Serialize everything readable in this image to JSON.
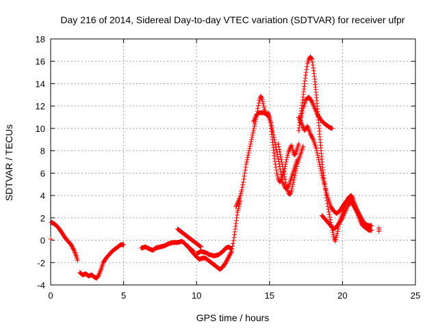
{
  "chart_data": {
    "type": "scatter",
    "title": "Day 216 of 2014, Sidereal Day-to-day VTEC variation (SDTVAR) for receiver ufpr",
    "xlabel": "GPS time / hours",
    "ylabel": "SDTVAR / TECUs",
    "xlim": [
      0,
      25
    ],
    "ylim": [
      -4,
      18
    ],
    "xticks": [
      0,
      5,
      10,
      15,
      20,
      25
    ],
    "yticks": [
      -4,
      -2,
      0,
      2,
      4,
      6,
      8,
      10,
      12,
      14,
      16,
      18
    ],
    "grid": true,
    "marker": "+",
    "series": [
      {
        "name": "SDTVAR",
        "color": "#ff0000",
        "segments": [
          [
            [
              0,
              0.1
            ]
          ],
          [
            [
              0.05,
              1.6
            ],
            [
              0.2,
              1.5
            ],
            [
              0.4,
              1.3
            ],
            [
              0.6,
              1.0
            ],
            [
              0.8,
              0.6
            ],
            [
              1.0,
              0.2
            ],
            [
              1.2,
              -0.1
            ],
            [
              1.4,
              -0.4
            ],
            [
              1.6,
              -0.9
            ],
            [
              1.75,
              -1.4
            ],
            [
              1.85,
              -1.8
            ]
          ],
          [
            [
              2.0,
              -2.9
            ],
            [
              2.2,
              -3.1
            ],
            [
              2.4,
              -3.0
            ],
            [
              2.6,
              -3.2
            ],
            [
              2.8,
              -3.1
            ],
            [
              3.0,
              -3.3
            ],
            [
              3.15,
              -3.4
            ],
            [
              3.3,
              -3.1
            ],
            [
              3.45,
              -2.6
            ],
            [
              3.6,
              -2.0
            ],
            [
              3.8,
              -1.6
            ],
            [
              4.0,
              -1.3
            ],
            [
              4.2,
              -1.0
            ],
            [
              4.4,
              -0.8
            ],
            [
              4.6,
              -0.6
            ],
            [
              4.8,
              -0.4
            ],
            [
              5.0,
              -0.4
            ]
          ],
          [
            [
              6.2,
              -0.7
            ],
            [
              6.5,
              -0.6
            ],
            [
              6.8,
              -0.8
            ],
            [
              7.0,
              -0.9
            ],
            [
              7.2,
              -0.7
            ],
            [
              7.5,
              -0.6
            ],
            [
              7.8,
              -0.5
            ],
            [
              8.1,
              -0.3
            ],
            [
              8.4,
              -0.2
            ],
            [
              8.7,
              -0.2
            ],
            [
              9.0,
              -0.1
            ],
            [
              9.2,
              -0.3
            ],
            [
              9.4,
              -0.6
            ],
            [
              9.6,
              -0.8
            ],
            [
              9.8,
              -1.0
            ]
          ],
          [
            [
              8.7,
              1.0
            ],
            [
              8.9,
              0.8
            ],
            [
              9.1,
              0.6
            ],
            [
              9.3,
              0.4
            ],
            [
              9.5,
              0.2
            ],
            [
              9.7,
              0.0
            ],
            [
              9.9,
              -0.2
            ],
            [
              10.1,
              -0.4
            ],
            [
              10.3,
              -0.6
            ]
          ],
          [
            [
              9.4,
              -0.5
            ],
            [
              9.6,
              -0.9
            ],
            [
              9.8,
              -1.2
            ],
            [
              10.0,
              -1.5
            ],
            [
              10.2,
              -1.7
            ],
            [
              10.4,
              -1.6
            ],
            [
              10.6,
              -1.6
            ],
            [
              10.8,
              -1.8
            ],
            [
              11.0,
              -2.0
            ],
            [
              11.2,
              -2.2
            ],
            [
              11.4,
              -2.4
            ],
            [
              11.6,
              -2.6
            ],
            [
              11.8,
              -2.4
            ],
            [
              12.0,
              -2.0
            ],
            [
              12.2,
              -1.5
            ],
            [
              12.4,
              -1.0
            ],
            [
              12.5,
              -0.3
            ],
            [
              12.6,
              0.5
            ],
            [
              12.7,
              1.5
            ],
            [
              12.8,
              2.5
            ],
            [
              12.9,
              3.0
            ],
            [
              13.0,
              3.5
            ]
          ],
          [
            [
              10.0,
              -1.2
            ],
            [
              10.3,
              -1.0
            ],
            [
              10.6,
              -1.1
            ],
            [
              10.9,
              -1.3
            ],
            [
              11.2,
              -1.4
            ],
            [
              11.5,
              -1.3
            ],
            [
              11.8,
              -1.0
            ],
            [
              12.0,
              -0.7
            ],
            [
              12.2,
              -0.6
            ],
            [
              12.4,
              -0.8
            ]
          ],
          [
            [
              12.7,
              3.0
            ],
            [
              12.9,
              3.6
            ],
            [
              13.0,
              4.0
            ],
            [
              13.1,
              4.5
            ],
            [
              13.2,
              5.2
            ],
            [
              13.3,
              6.0
            ],
            [
              13.4,
              6.8
            ],
            [
              13.5,
              7.4
            ],
            [
              13.6,
              8.0
            ],
            [
              13.7,
              8.6
            ],
            [
              13.8,
              9.2
            ],
            [
              13.9,
              9.8
            ],
            [
              14.0,
              10.4
            ],
            [
              14.1,
              11.0
            ],
            [
              14.2,
              11.8
            ],
            [
              14.3,
              12.5
            ],
            [
              14.4,
              12.9
            ],
            [
              14.5,
              12.6
            ],
            [
              14.6,
              12.0
            ],
            [
              14.7,
              11.5
            ],
            [
              14.8,
              11.2
            ],
            [
              14.9,
              11.4
            ],
            [
              15.0,
              11.0
            ],
            [
              15.1,
              10.2
            ],
            [
              15.2,
              9.0
            ],
            [
              15.3,
              7.8
            ],
            [
              15.4,
              6.8
            ],
            [
              15.5,
              6.0
            ],
            [
              15.6,
              5.5
            ],
            [
              15.7,
              5.2
            ],
            [
              15.8,
              5.4
            ],
            [
              15.9,
              5.8
            ],
            [
              16.0,
              6.2
            ],
            [
              16.1,
              6.8
            ],
            [
              16.2,
              7.4
            ],
            [
              16.3,
              7.9
            ],
            [
              16.4,
              8.2
            ],
            [
              16.5,
              8.5
            ],
            [
              16.6,
              8.0
            ],
            [
              16.7,
              7.6
            ],
            [
              16.8,
              7.8
            ],
            [
              16.9,
              8.2
            ],
            [
              17.0,
              8.6
            ]
          ],
          [
            [
              13.9,
              10.6
            ],
            [
              14.1,
              11.2
            ],
            [
              14.3,
              11.4
            ],
            [
              14.6,
              11.4
            ],
            [
              14.9,
              11.2
            ],
            [
              15.1,
              10.5
            ],
            [
              15.3,
              9.2
            ],
            [
              15.5,
              7.9
            ],
            [
              15.7,
              6.6
            ],
            [
              15.9,
              5.2
            ],
            [
              16.1,
              4.6
            ],
            [
              16.3,
              4.8
            ],
            [
              16.5,
              5.6
            ],
            [
              16.7,
              6.4
            ],
            [
              16.9,
              7.2
            ]
          ],
          [
            [
              15.6,
              8.6
            ],
            [
              15.7,
              7.9
            ],
            [
              15.8,
              7.2
            ],
            [
              15.9,
              6.6
            ],
            [
              16.0,
              5.9
            ],
            [
              16.1,
              5.2
            ],
            [
              16.2,
              4.6
            ],
            [
              16.3,
              4.2
            ],
            [
              16.4,
              4.1
            ],
            [
              16.5,
              4.4
            ],
            [
              16.6,
              5.0
            ],
            [
              16.7,
              5.6
            ],
            [
              16.8,
              6.2
            ],
            [
              16.9,
              6.8
            ],
            [
              17.0,
              7.2
            ],
            [
              17.1,
              7.6
            ],
            [
              17.2,
              8.0
            ],
            [
              17.3,
              8.4
            ]
          ],
          [
            [
              17.0,
              9.8
            ],
            [
              17.1,
              10.8
            ],
            [
              17.2,
              11.8
            ],
            [
              17.3,
              12.8
            ],
            [
              17.4,
              14.0
            ],
            [
              17.5,
              15.0
            ],
            [
              17.6,
              15.8
            ],
            [
              17.7,
              16.2
            ],
            [
              17.8,
              16.4
            ],
            [
              17.9,
              16.2
            ],
            [
              18.0,
              15.4
            ],
            [
              18.1,
              14.4
            ],
            [
              18.2,
              13.0
            ],
            [
              18.3,
              11.5
            ],
            [
              18.4,
              10.0
            ],
            [
              18.5,
              8.5
            ],
            [
              18.6,
              7.0
            ],
            [
              18.7,
              5.8
            ],
            [
              18.8,
              4.8
            ],
            [
              18.9,
              3.8
            ],
            [
              19.0,
              3.0
            ],
            [
              19.1,
              2.3
            ],
            [
              19.2,
              1.6
            ],
            [
              19.3,
              0.9
            ],
            [
              19.4,
              0.3
            ],
            [
              19.5,
              -0.1
            ],
            [
              19.6,
              0.4
            ],
            [
              19.7,
              1.0
            ],
            [
              19.8,
              1.6
            ],
            [
              19.9,
              2.0
            ],
            [
              20.0,
              2.4
            ],
            [
              20.1,
              2.8
            ],
            [
              20.2,
              3.2
            ],
            [
              20.3,
              3.5
            ],
            [
              20.4,
              3.8
            ],
            [
              20.5,
              3.9
            ],
            [
              20.6,
              4.0
            ],
            [
              20.7,
              3.8
            ],
            [
              20.8,
              3.4
            ],
            [
              20.9,
              3.0
            ],
            [
              21.0,
              2.6
            ],
            [
              21.1,
              2.2
            ],
            [
              21.2,
              1.8
            ],
            [
              21.3,
              1.5
            ],
            [
              21.4,
              1.3
            ],
            [
              21.5,
              1.2
            ],
            [
              21.6,
              1.1
            ],
            [
              21.7,
              1.0
            ],
            [
              21.8,
              0.9
            ],
            [
              21.9,
              0.9
            ],
            [
              22.0,
              0.9
            ]
          ],
          [
            [
              17.1,
              10.5
            ],
            [
              17.3,
              11.8
            ],
            [
              17.5,
              12.6
            ],
            [
              17.7,
              12.8
            ],
            [
              17.9,
              12.4
            ],
            [
              18.1,
              11.8
            ],
            [
              18.3,
              11.2
            ],
            [
              18.5,
              10.8
            ],
            [
              18.7,
              10.5
            ],
            [
              18.9,
              10.3
            ],
            [
              19.1,
              10.1
            ],
            [
              19.3,
              10.0
            ]
          ],
          [
            [
              17.0,
              11.0
            ],
            [
              17.2,
              10.4
            ],
            [
              17.4,
              9.8
            ],
            [
              17.6,
              10.2
            ],
            [
              17.8,
              9.5
            ],
            [
              18.0,
              9.0
            ],
            [
              18.2,
              8.2
            ],
            [
              18.4,
              7.0
            ],
            [
              18.6,
              5.8
            ],
            [
              18.8,
              4.8
            ],
            [
              19.0,
              3.8
            ],
            [
              19.2,
              3.0
            ],
            [
              19.4,
              2.6
            ],
            [
              19.6,
              2.4
            ],
            [
              19.8,
              2.6
            ],
            [
              20.0,
              3.0
            ],
            [
              20.2,
              3.4
            ],
            [
              20.4,
              3.7
            ],
            [
              20.6,
              3.6
            ],
            [
              20.8,
              3.2
            ],
            [
              21.0,
              2.7
            ],
            [
              21.2,
              2.2
            ],
            [
              21.4,
              1.7
            ],
            [
              21.6,
              1.4
            ],
            [
              21.8,
              1.3
            ],
            [
              22.0,
              1.3
            ]
          ],
          [
            [
              18.6,
              2.2
            ],
            [
              18.8,
              1.9
            ],
            [
              19.0,
              1.6
            ],
            [
              19.2,
              1.3
            ],
            [
              19.4,
              1.0
            ],
            [
              19.6,
              1.2
            ],
            [
              19.8,
              1.6
            ],
            [
              20.0,
              2.0
            ],
            [
              20.2,
              2.6
            ],
            [
              20.4,
              3.2
            ],
            [
              20.6,
              3.4
            ],
            [
              20.8,
              3.0
            ],
            [
              21.0,
              2.5
            ],
            [
              21.2,
              2.0
            ],
            [
              21.4,
              1.6
            ]
          ],
          [
            [
              22.5,
              1.1
            ],
            [
              22.5,
              0.8
            ]
          ]
        ]
      }
    ]
  }
}
